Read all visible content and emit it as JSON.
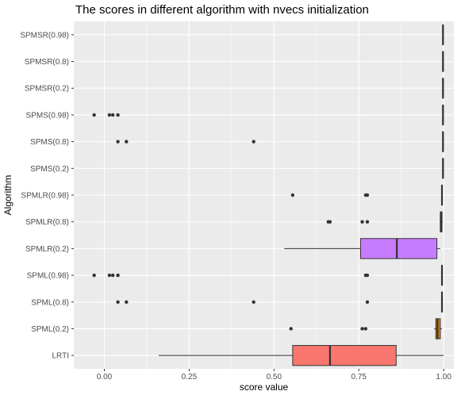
{
  "chart_data": {
    "type": "boxplot",
    "orientation": "horizontal",
    "title": "The scores in different algorithm with nvecs initialization",
    "xlabel": "score value",
    "ylabel": "Algorithm",
    "xlim": [
      -0.09,
      1.03
    ],
    "x_ticks": [
      0.0,
      0.25,
      0.5,
      0.75,
      1.0
    ],
    "x_tick_labels": [
      "0.00",
      "0.25",
      "0.50",
      "0.75",
      "1.00"
    ],
    "grid": true,
    "legend": "none",
    "categories": [
      "SPMSR(0.98)",
      "SPMSR(0.8)",
      "SPMSR(0.2)",
      "SPMS(0.98)",
      "SPMS(0.8)",
      "SPMS(0.2)",
      "SPMLR(0.98)",
      "SPMLR(0.8)",
      "SPMLR(0.2)",
      "SPML(0.98)",
      "SPML(0.8)",
      "SPML(0.2)",
      "LRTI"
    ],
    "boxes": [
      {
        "name": "SPMSR(0.98)",
        "whisker_low": 0.996,
        "q1": 0.997,
        "median": 0.998,
        "q3": 0.999,
        "whisker_high": 1.0,
        "outliers": [],
        "fill": "#CD9600"
      },
      {
        "name": "SPMSR(0.8)",
        "whisker_low": 0.996,
        "q1": 0.997,
        "median": 0.998,
        "q3": 0.999,
        "whisker_high": 1.0,
        "outliers": [],
        "fill": "#ABA300"
      },
      {
        "name": "SPMSR(0.2)",
        "whisker_low": 0.996,
        "q1": 0.997,
        "median": 0.998,
        "q3": 0.999,
        "whisker_high": 1.0,
        "outliers": [],
        "fill": "#7CAE00"
      },
      {
        "name": "SPMS(0.98)",
        "whisker_low": 0.996,
        "q1": 0.997,
        "median": 0.998,
        "q3": 0.999,
        "whisker_high": 1.0,
        "outliers": [
          -0.03,
          0.015,
          0.025,
          0.04
        ],
        "fill": "#00BE67"
      },
      {
        "name": "SPMS(0.8)",
        "whisker_low": 0.996,
        "q1": 0.997,
        "median": 0.998,
        "q3": 0.999,
        "whisker_high": 1.0,
        "outliers": [
          0.04,
          0.065,
          0.44
        ],
        "fill": "#00C19A"
      },
      {
        "name": "SPMS(0.2)",
        "whisker_low": 0.996,
        "q1": 0.997,
        "median": 0.998,
        "q3": 0.999,
        "whisker_high": 1.0,
        "outliers": [],
        "fill": "#00BFC4"
      },
      {
        "name": "SPMLR(0.98)",
        "whisker_low": 0.993,
        "q1": 0.994,
        "median": 0.995,
        "q3": 0.996,
        "whisker_high": 0.997,
        "outliers": [
          0.555,
          0.77,
          0.775
        ],
        "fill": "#00B8E7"
      },
      {
        "name": "SPMLR(0.8)",
        "whisker_low": 0.988,
        "q1": 0.99,
        "median": 0.992,
        "q3": 0.995,
        "whisker_high": 0.997,
        "outliers": [
          0.66,
          0.665,
          0.76,
          0.775
        ],
        "fill": "#00A9FF"
      },
      {
        "name": "SPMLR(0.2)",
        "whisker_low": 0.53,
        "q1": 0.755,
        "median": 0.862,
        "q3": 0.98,
        "whisker_high": 0.99,
        "outliers": [],
        "fill": "#C77CFF"
      },
      {
        "name": "SPML(0.98)",
        "whisker_low": 0.993,
        "q1": 0.994,
        "median": 0.995,
        "q3": 0.996,
        "whisker_high": 0.997,
        "outliers": [
          -0.03,
          0.015,
          0.025,
          0.04,
          0.77,
          0.775
        ],
        "fill": "#FF61CC"
      },
      {
        "name": "SPML(0.8)",
        "whisker_low": 0.993,
        "q1": 0.994,
        "median": 0.995,
        "q3": 0.996,
        "whisker_high": 0.997,
        "outliers": [
          0.04,
          0.065,
          0.44,
          0.775
        ],
        "fill": "#FF6C91"
      },
      {
        "name": "SPML(0.2)",
        "whisker_low": 0.972,
        "q1": 0.977,
        "median": 0.982,
        "q3": 0.99,
        "whisker_high": 0.995,
        "outliers": [
          0.55,
          0.76,
          0.77
        ],
        "fill": "#E18A00"
      },
      {
        "name": "LRTI",
        "whisker_low": 0.16,
        "q1": 0.555,
        "median": 0.665,
        "q3": 0.86,
        "whisker_high": 1.0,
        "outliers": [],
        "fill": "#F8766D"
      }
    ]
  },
  "colors": {
    "panel_background": "#ebebeb",
    "grid_major": "#ffffff",
    "outlier": "#333333",
    "box_line": "#333333"
  }
}
